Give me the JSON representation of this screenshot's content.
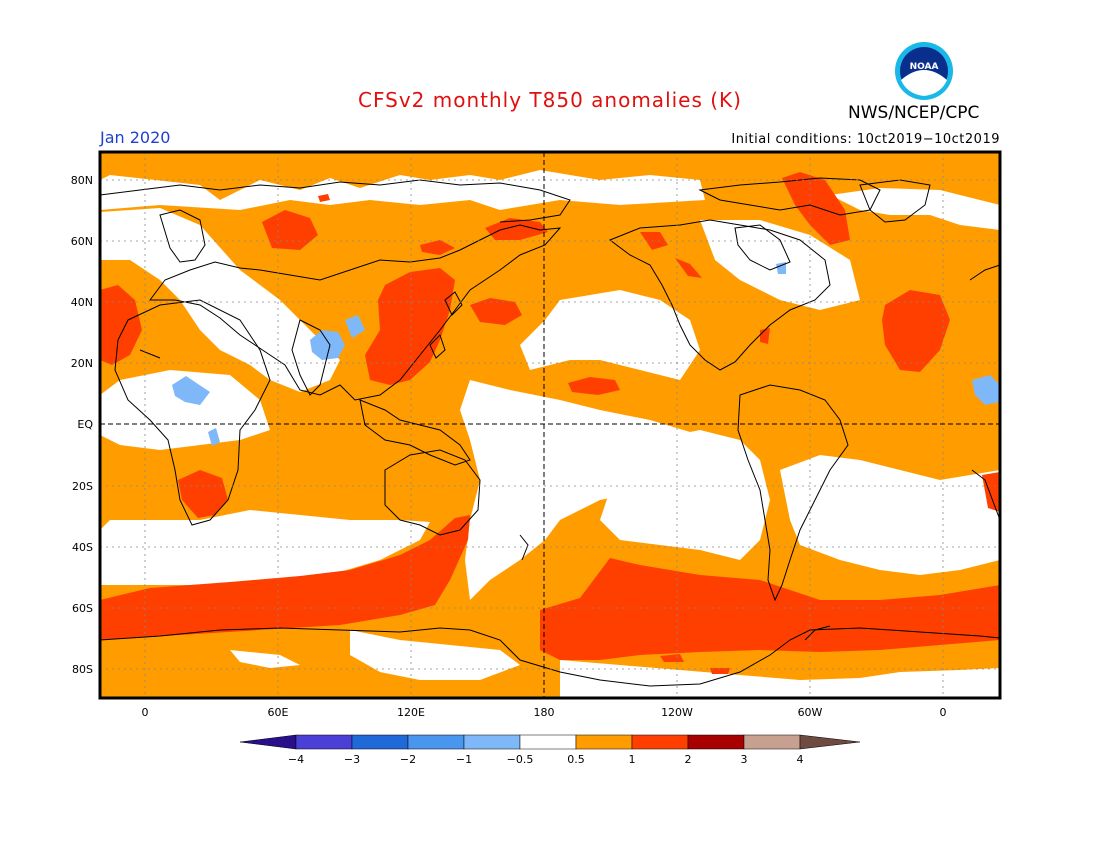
{
  "title": "CFSv2 monthly T850 anomalies (K)",
  "organization": "NWS/NCEP/CPC",
  "logo_text": "NOAA",
  "valid_month": "Jan 2020",
  "initial_conditions": "Initial conditions: 10ct2019−10ct2019",
  "lat_labels": [
    "80N",
    "60N",
    "40N",
    "20N",
    "EQ",
    "20S",
    "40S",
    "60S",
    "80S"
  ],
  "lon_labels": [
    "0",
    "60E",
    "120E",
    "180",
    "120W",
    "60W",
    "0"
  ],
  "colorbar": {
    "labels": [
      "−4",
      "−3",
      "−2",
      "−1",
      "−0.5",
      "0.5",
      "1",
      "2",
      "3",
      "4"
    ],
    "colors": [
      "#2a0f8c",
      "#4b40d6",
      "#1f6ad8",
      "#4896ee",
      "#7fb8f8",
      "#ffffff",
      "#ff9d00",
      "#ff3f00",
      "#a80000",
      "#c8a090",
      "#6e4a40"
    ]
  },
  "colors": {
    "title": "#e01010",
    "month": "#1f3fd0",
    "frame": "#000000"
  }
}
